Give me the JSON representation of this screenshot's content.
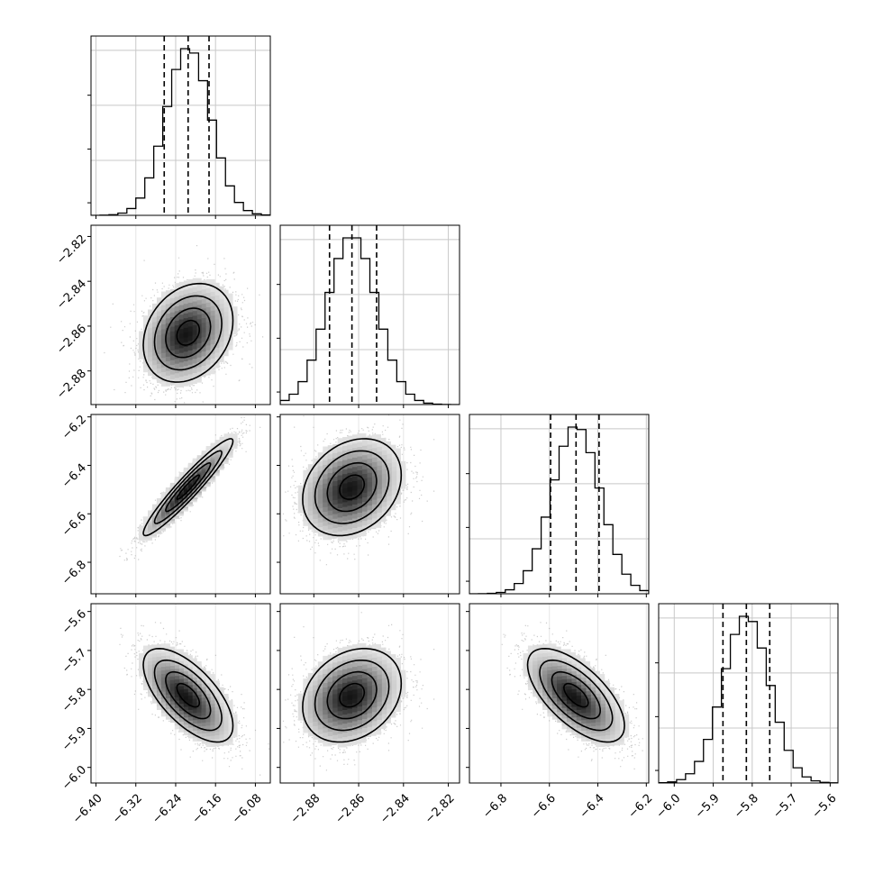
{
  "chart_data": {
    "type": "corner",
    "parameters": [
      {
        "range": [
          -6.41,
          -6.05
        ],
        "ticks": [
          "−6.40",
          "−6.32",
          "−6.24",
          "−6.16",
          "−6.08"
        ],
        "tick_values": [
          -6.4,
          -6.32,
          -6.24,
          -6.16,
          -6.08
        ],
        "quantiles": [
          -6.263,
          -6.215,
          -6.173
        ],
        "mean": -6.215,
        "sd": 0.045
      },
      {
        "range": [
          -2.895,
          -2.815
        ],
        "ticks": [
          "−2.88",
          "−2.86",
          "−2.84",
          "−2.82"
        ],
        "tick_values": [
          -2.88,
          -2.86,
          -2.84,
          -2.82
        ],
        "quantiles": [
          -2.873,
          -2.863,
          -2.852
        ],
        "mean": -2.863,
        "sd": 0.011
      },
      {
        "range": [
          -6.93,
          -6.19
        ],
        "ticks": [
          "−6.8",
          "−6.6",
          "−6.4",
          "−6.2"
        ],
        "tick_values": [
          -6.8,
          -6.6,
          -6.4,
          -6.2
        ],
        "quantiles": [
          -6.595,
          -6.49,
          -6.395
        ],
        "mean": -6.49,
        "sd": 0.1
      },
      {
        "range": [
          -6.04,
          -5.58
        ],
        "ticks": [
          "−6.0",
          "−5.9",
          "−5.8",
          "−5.7",
          "−5.6"
        ],
        "tick_values": [
          -6.0,
          -5.9,
          -5.8,
          -5.7,
          -5.6
        ],
        "quantiles": [
          -5.875,
          -5.815,
          -5.755
        ],
        "mean": -5.815,
        "sd": 0.06
      }
    ],
    "correlations": [
      [
        1.0,
        0.25,
        0.95,
        -0.65
      ],
      [
        0.25,
        1.0,
        0.25,
        0.25
      ],
      [
        0.95,
        0.25,
        1.0,
        -0.65
      ],
      [
        -0.65,
        0.25,
        -0.65,
        1.0
      ]
    ],
    "histogram_bins": 20,
    "contour_levels": [
      "0.5 sigma",
      "1 sigma",
      "1.5 sigma",
      "2 sigma"
    ],
    "grid": true,
    "quantile_lines": "dashed"
  }
}
